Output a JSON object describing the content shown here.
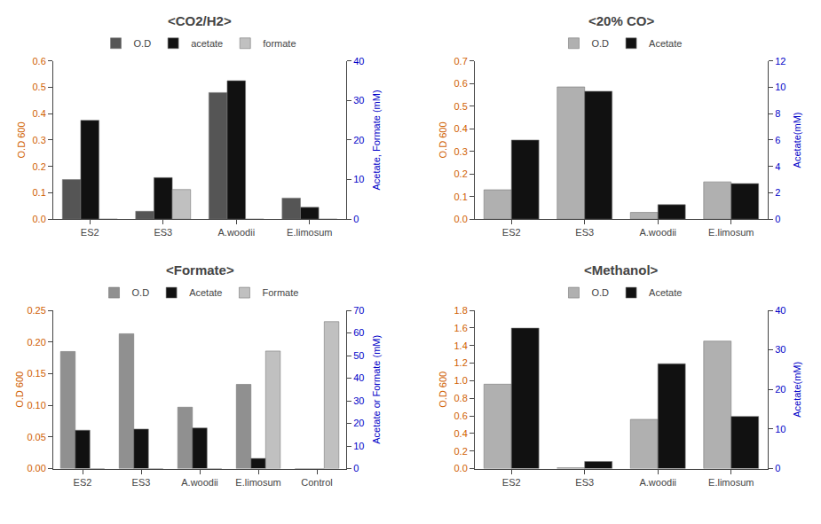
{
  "chart_data": [
    {
      "type": "bar",
      "title": "<CO2/H2>",
      "categories": [
        "ES2",
        "ES3",
        "A.woodii",
        "E.limosum"
      ],
      "series": [
        {
          "name": "O.D",
          "color": "#555555",
          "values": [
            0.15,
            0.03,
            0.48,
            0.08
          ]
        },
        {
          "name": "acetate",
          "color": "#111111",
          "values": [
            25.0,
            10.5,
            35.0,
            3.0
          ],
          "axis": "y2"
        },
        {
          "name": "formate",
          "color": "#c0c0c0",
          "values": [
            0.0,
            7.5,
            0.0,
            0.0
          ],
          "axis": "y2"
        }
      ],
      "ylabel": "O.D 600",
      "y2label": "Acetate, Formate (mM)",
      "ylim": [
        0,
        0.6
      ],
      "yticks": [
        {
          "value": 0,
          "label": "0.0"
        },
        0.1,
        0.2,
        0.3,
        0.4,
        0.5,
        0.6
      ],
      "y2lim": [
        0,
        40
      ],
      "y2ticks": [
        0,
        10,
        20,
        30,
        40
      ],
      "grid": false,
      "legend": "top"
    },
    {
      "type": "bar",
      "title": "<20% CO>",
      "categories": [
        "ES2",
        "ES3",
        "A.woodii",
        "E.limosum"
      ],
      "series": [
        {
          "name": "O.D",
          "color": "#b0b0b0",
          "values": [
            0.13,
            0.585,
            0.03,
            0.165
          ]
        },
        {
          "name": "Acetate",
          "color": "#111111",
          "values": [
            6.0,
            9.7,
            1.1,
            2.7
          ],
          "axis": "y2"
        }
      ],
      "ylabel": "O.D 600",
      "y2label": "Acetate(mM)",
      "ylim": [
        0,
        0.7
      ],
      "yticks": [
        {
          "value": 0,
          "label": "0.0"
        },
        0.1,
        0.2,
        0.3,
        0.4,
        0.5,
        0.6,
        0.7
      ],
      "y2lim": [
        0,
        12
      ],
      "y2ticks": [
        0,
        2,
        4,
        6,
        8,
        10,
        12
      ],
      "grid": false,
      "legend": "top"
    },
    {
      "type": "bar",
      "title": "<Formate>",
      "categories": [
        "ES2",
        "ES3",
        "A.woodii",
        "E.limosum",
        "Control"
      ],
      "series": [
        {
          "name": "O.D",
          "color": "#909090",
          "values": [
            0.185,
            0.213,
            0.097,
            0.133,
            0.0
          ]
        },
        {
          "name": "Acetate",
          "color": "#111111",
          "values": [
            17.0,
            17.5,
            18.0,
            4.5,
            0.0
          ],
          "axis": "y2"
        },
        {
          "name": "Formate",
          "color": "#c0c0c0",
          "values": [
            0.0,
            0.0,
            0.0,
            52.0,
            65.0
          ],
          "axis": "y2"
        }
      ],
      "ylabel": "O.D 600",
      "y2label": "Acetate or Formate (mM)",
      "ylim": [
        0,
        0.25
      ],
      "yticks": [
        {
          "value": 0,
          "label": "0.00"
        },
        0.05,
        {
          "value": 0.1,
          "label": "0.10"
        },
        0.15,
        {
          "value": 0.2,
          "label": "0.20"
        },
        0.25
      ],
      "y2lim": [
        0,
        70
      ],
      "y2ticks": [
        0,
        10,
        20,
        30,
        40,
        50,
        60,
        70
      ],
      "grid": false,
      "legend": "top"
    },
    {
      "type": "bar",
      "title": "<Methanol>",
      "categories": [
        "ES2",
        "ES3",
        "A.woodii",
        "E.limosum"
      ],
      "series": [
        {
          "name": "O.D",
          "color": "#b0b0b0",
          "values": [
            0.96,
            0.01,
            0.56,
            1.45
          ]
        },
        {
          "name": "Acetate",
          "color": "#111111",
          "values": [
            35.5,
            1.8,
            26.5,
            13.2
          ],
          "axis": "y2"
        }
      ],
      "ylabel": "O.D 600",
      "y2label": "Acetate(mM)",
      "ylim": [
        0,
        1.8
      ],
      "yticks": [
        {
          "value": 0,
          "label": "0.0"
        },
        0.2,
        0.4,
        0.6,
        0.8,
        {
          "value": 1,
          "label": "1.0"
        },
        1.2,
        1.4,
        1.6,
        1.8
      ],
      "y2lim": [
        0,
        40
      ],
      "y2ticks": [
        0,
        10,
        20,
        30,
        40
      ],
      "grid": false,
      "legend": "top"
    }
  ]
}
